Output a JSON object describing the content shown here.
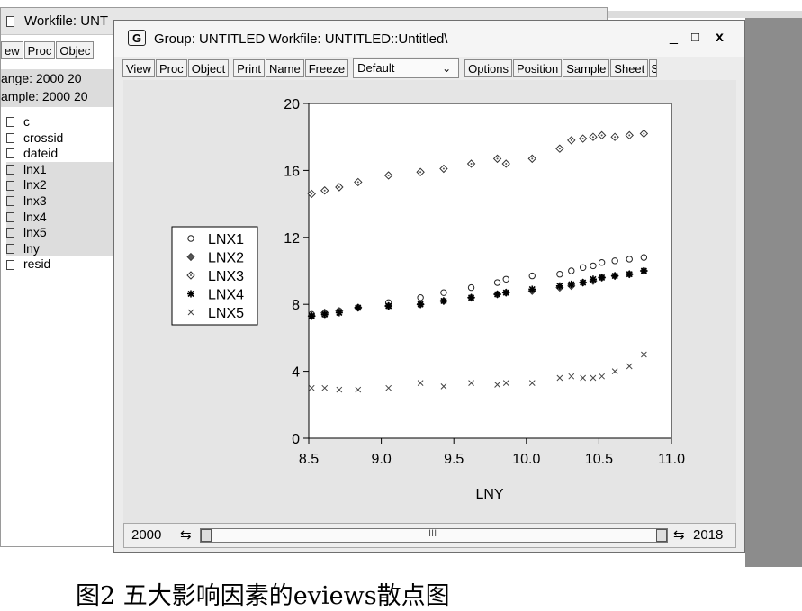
{
  "workfile_window": {
    "title": "Workfile: UNT",
    "toolbar": [
      "ew",
      "Proc",
      "Objec"
    ],
    "range_text": "ange:  2000 20",
    "sample_text": "ample: 2000 20",
    "objects": [
      {
        "name": "c",
        "selected": false
      },
      {
        "name": "crossid",
        "selected": false
      },
      {
        "name": "dateid",
        "selected": false
      },
      {
        "name": "lnx1",
        "selected": true
      },
      {
        "name": "lnx2",
        "selected": true
      },
      {
        "name": "lnx3",
        "selected": true
      },
      {
        "name": "lnx4",
        "selected": true
      },
      {
        "name": "lnx5",
        "selected": true
      },
      {
        "name": "lny",
        "selected": true
      },
      {
        "name": "resid",
        "selected": false
      }
    ]
  },
  "group_window": {
    "icon_letter": "G",
    "title": "Group: UNTITLED   Workfile: UNTITLED::Untitled\\",
    "controls": {
      "minimize": "_",
      "maximize": "□",
      "close": "x"
    },
    "toolbar": {
      "left": [
        "View",
        "Proc",
        "Object"
      ],
      "middle": [
        "Print",
        "Name",
        "Freeze"
      ],
      "dropdown_value": "Default",
      "right": [
        "Options",
        "Position",
        "Sample",
        "Sheet",
        "S"
      ]
    },
    "sample_bar": {
      "start": "2000",
      "end": "2018",
      "mid_mark": "III"
    }
  },
  "chart_data": {
    "type": "scatter",
    "xlabel": "LNY",
    "ylabel": "",
    "xlim": [
      8.5,
      11.0
    ],
    "ylim": [
      0,
      20
    ],
    "x_ticks": [
      "8.5",
      "9.0",
      "9.5",
      "10.0",
      "10.5",
      "11.0"
    ],
    "y_ticks": [
      "0",
      "4",
      "8",
      "12",
      "16",
      "20"
    ],
    "legend_position": "left",
    "grid": false,
    "x": [
      8.52,
      8.61,
      8.71,
      8.84,
      9.05,
      9.27,
      9.43,
      9.62,
      9.8,
      9.86,
      10.04,
      10.23,
      10.31,
      10.39,
      10.46,
      10.52,
      10.61,
      10.71,
      10.81
    ],
    "series": [
      {
        "name": "LNX1",
        "marker": "circle",
        "values": [
          7.4,
          7.4,
          7.6,
          7.8,
          8.1,
          8.4,
          8.7,
          9.0,
          9.3,
          9.5,
          9.7,
          9.8,
          10.0,
          10.2,
          10.3,
          10.5,
          10.6,
          10.7,
          10.8
        ]
      },
      {
        "name": "LNX2",
        "marker": "diamond-filled",
        "values": [
          7.3,
          7.5,
          7.6,
          7.8,
          7.9,
          8.0,
          8.2,
          8.4,
          8.6,
          8.7,
          8.8,
          9.0,
          9.1,
          9.3,
          9.4,
          9.6,
          9.7,
          9.8,
          10.0
        ]
      },
      {
        "name": "LNX3",
        "marker": "diamond-open",
        "values": [
          14.6,
          14.8,
          15.0,
          15.3,
          15.7,
          15.9,
          16.1,
          16.4,
          16.7,
          16.4,
          16.7,
          17.3,
          17.8,
          17.9,
          18.0,
          18.1,
          18.0,
          18.1,
          18.2
        ]
      },
      {
        "name": "LNX4",
        "marker": "star",
        "values": [
          7.3,
          7.4,
          7.5,
          7.8,
          7.9,
          8.0,
          8.2,
          8.4,
          8.6,
          8.7,
          8.9,
          9.1,
          9.2,
          9.3,
          9.5,
          9.6,
          9.7,
          9.8,
          10.0
        ]
      },
      {
        "name": "LNX5",
        "marker": "x",
        "values": [
          3.0,
          3.0,
          2.9,
          2.9,
          3.0,
          3.3,
          3.1,
          3.3,
          3.2,
          3.3,
          3.3,
          3.6,
          3.7,
          3.6,
          3.6,
          3.7,
          4.0,
          4.3,
          5.0
        ]
      }
    ]
  },
  "caption": "图2  五大影响因素的eviews散点图"
}
